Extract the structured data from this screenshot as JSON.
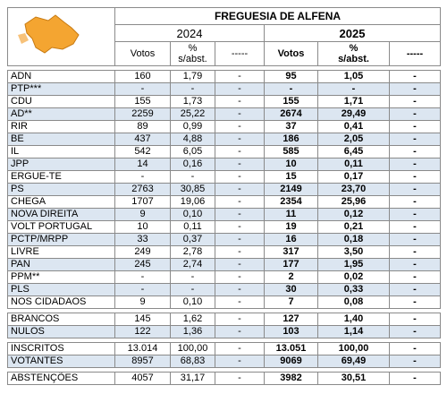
{
  "header": {
    "title": "FREGUESIA DE ALFENA",
    "years": [
      "2024",
      "2025"
    ],
    "columns": [
      "Votos",
      "% s/abst.",
      "-----",
      "Votos",
      "% s/abst.",
      "-----"
    ]
  },
  "groups": [
    {
      "rows": [
        [
          "ADN",
          "160",
          "1,79",
          "-",
          "95",
          "1,05",
          "-"
        ],
        [
          "PTP***",
          "-",
          "-",
          "-",
          "-",
          "-",
          "-"
        ],
        [
          "CDU",
          "155",
          "1,73",
          "-",
          "155",
          "1,71",
          "-"
        ],
        [
          "AD**",
          "2259",
          "25,22",
          "-",
          "2674",
          "29,49",
          "-"
        ],
        [
          "RIR",
          "89",
          "0,99",
          "-",
          "37",
          "0,41",
          "-"
        ],
        [
          "BE",
          "437",
          "4,88",
          "-",
          "186",
          "2,05",
          "-"
        ],
        [
          "IL",
          "542",
          "6,05",
          "-",
          "585",
          "6,45",
          "-"
        ],
        [
          "JPP",
          "14",
          "0,16",
          "-",
          "10",
          "0,11",
          "-"
        ],
        [
          "ERGUE-TE",
          "-",
          "-",
          "-",
          "15",
          "0,17",
          "-"
        ],
        [
          "PS",
          "2763",
          "30,85",
          "-",
          "2149",
          "23,70",
          "-"
        ],
        [
          "CHEGA",
          "1707",
          "19,06",
          "-",
          "2354",
          "25,96",
          "-"
        ],
        [
          "NOVA DIREITA",
          "9",
          "0,10",
          "-",
          "11",
          "0,12",
          "-"
        ],
        [
          "VOLT PORTUGAL",
          "10",
          "0,11",
          "-",
          "19",
          "0,21",
          "-"
        ],
        [
          "PCTP/MRPP",
          "33",
          "0,37",
          "-",
          "16",
          "0,18",
          "-"
        ],
        [
          "LIVRE",
          "249",
          "2,78",
          "-",
          "317",
          "3,50",
          "-"
        ],
        [
          "PAN",
          "245",
          "2,74",
          "-",
          "177",
          "1,95",
          "-"
        ],
        [
          "PPM**",
          "-",
          "-",
          "-",
          "2",
          "0,02",
          "-"
        ],
        [
          "PLS",
          "-",
          "-",
          "-",
          "30",
          "0,33",
          "-"
        ],
        [
          "NOS CIDADAOS",
          "9",
          "0,10",
          "-",
          "7",
          "0,08",
          "-"
        ]
      ]
    },
    {
      "rows": [
        [
          "BRANCOS",
          "145",
          "1,62",
          "-",
          "127",
          "1,40",
          "-"
        ],
        [
          "NULOS",
          "122",
          "1,36",
          "-",
          "103",
          "1,14",
          "-"
        ]
      ]
    },
    {
      "rows": [
        [
          "INSCRITOS",
          "13.014",
          "100,00",
          "-",
          "13.051",
          "100,00",
          "-"
        ],
        [
          "VOTANTES",
          "8957",
          "68,83",
          "-",
          "9069",
          "69,49",
          "-"
        ]
      ]
    },
    {
      "rows": [
        [
          "ABSTENÇÕES",
          "4057",
          "31,17",
          "-",
          "3982",
          "30,51",
          "-"
        ]
      ]
    }
  ]
}
